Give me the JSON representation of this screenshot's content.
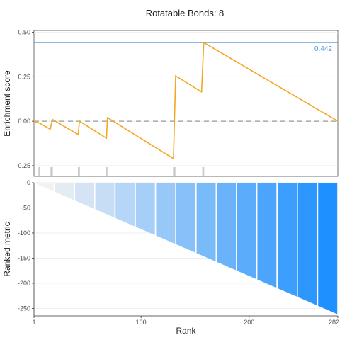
{
  "chart_data": {
    "title": "Rotatable Bonds: 8",
    "top_panel": {
      "type": "line",
      "ylabel": "Enrichment score",
      "ylim": [
        -0.31,
        0.51
      ],
      "yticks": [
        {
          "value": 0.5,
          "label": "0.50"
        },
        {
          "value": 0.25,
          "label": "0.25"
        },
        {
          "value": 0.0,
          "label": "0.00"
        },
        {
          "value": -0.25,
          "label": "-0.25"
        }
      ],
      "max_es": 0.442,
      "max_es_label": "0.442",
      "line_color": "#f5a623",
      "max_line_color": "#4a90d9",
      "zero_line": "dashed",
      "points": [
        {
          "x": 1,
          "y": 0.0
        },
        {
          "x": 5,
          "y": -0.01
        },
        {
          "x": 6,
          "y": -0.01
        },
        {
          "x": 16,
          "y": -0.045
        },
        {
          "x": 18,
          "y": 0.01
        },
        {
          "x": 42,
          "y": -0.075
        },
        {
          "x": 43,
          "y": 0.0
        },
        {
          "x": 68,
          "y": -0.095
        },
        {
          "x": 69,
          "y": 0.02
        },
        {
          "x": 130,
          "y": -0.21
        },
        {
          "x": 132,
          "y": 0.255
        },
        {
          "x": 156,
          "y": 0.165
        },
        {
          "x": 158,
          "y": 0.442
        },
        {
          "x": 282,
          "y": 0.0
        }
      ],
      "hits": [
        5,
        6,
        16,
        17,
        18,
        42,
        43,
        68,
        69,
        130,
        131,
        132,
        157,
        158
      ]
    },
    "bottom_panel": {
      "type": "area",
      "ylabel": "Ranked metric",
      "xlabel": "Rank",
      "ylim": [
        -265,
        0
      ],
      "yticks": [
        {
          "value": 0,
          "label": "0"
        },
        {
          "value": -50,
          "label": "-50"
        },
        {
          "value": -100,
          "label": "-100"
        },
        {
          "value": -150,
          "label": "-150"
        },
        {
          "value": -200,
          "label": "-200"
        },
        {
          "value": -250,
          "label": "-250"
        }
      ],
      "xlim": [
        1,
        282
      ],
      "xticks": [
        {
          "value": 1,
          "label": "1"
        },
        {
          "value": 100,
          "label": "100"
        },
        {
          "value": 200,
          "label": "200"
        },
        {
          "value": 282,
          "label": "282"
        }
      ],
      "metric_start": 0,
      "metric_end": -262,
      "segments": 15,
      "gradient_start": "#f2f2f2",
      "gradient_end": "#1e90ff"
    }
  }
}
